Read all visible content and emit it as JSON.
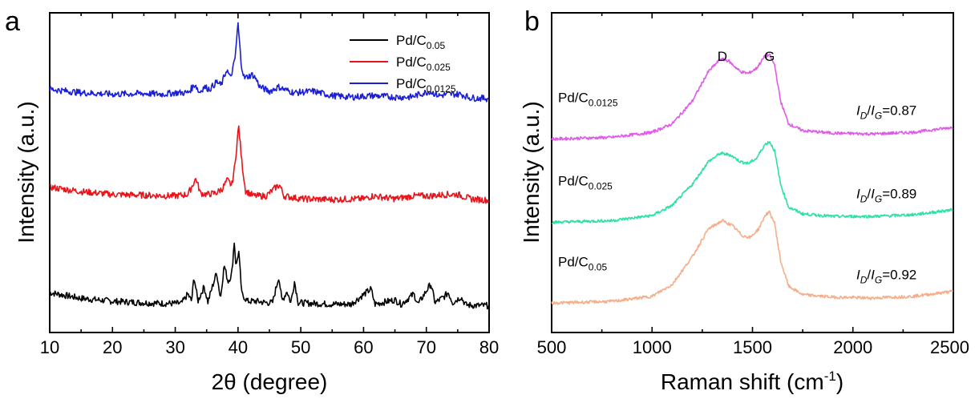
{
  "chart_data": [
    {
      "type": "line",
      "panel_label": "a",
      "xlabel": "2θ (degree)",
      "ylabel": "Intensity (a.u.)",
      "xlim": [
        10,
        80
      ],
      "xticks": [
        "10",
        "20",
        "30",
        "40",
        "50",
        "60",
        "70",
        "80"
      ],
      "y_tick_labels": false,
      "legend": {
        "placement": "top-right",
        "entries": [
          {
            "base": "Pd/C",
            "sub": "0.05",
            "color": "#000000"
          },
          {
            "base": "Pd/C",
            "sub": "0.025",
            "color": "#e8141b"
          },
          {
            "base": "Pd/C",
            "sub": "0.0125",
            "color": "#1a1fd6"
          }
        ]
      },
      "series": [
        {
          "name": "Pd/C0.05",
          "color": "#000000",
          "offset": 0.0,
          "points": [
            [
              10,
              0.2
            ],
            [
              15,
              0.12
            ],
            [
              20,
              0.08
            ],
            [
              25,
              0.06
            ],
            [
              28,
              0.05
            ],
            [
              31,
              0.05
            ],
            [
              32,
              0.18
            ],
            [
              32.6,
              0.08
            ],
            [
              33,
              0.42
            ],
            [
              33.6,
              0.08
            ],
            [
              34.6,
              0.28
            ],
            [
              35.2,
              0.07
            ],
            [
              36.6,
              0.48
            ],
            [
              37.2,
              0.12
            ],
            [
              37.8,
              0.58
            ],
            [
              38.4,
              0.35
            ],
            [
              39,
              0.45
            ],
            [
              39.4,
              0.9
            ],
            [
              39.7,
              0.55
            ],
            [
              40.1,
              0.78
            ],
            [
              40.6,
              0.18
            ],
            [
              41.5,
              0.08
            ],
            [
              43,
              0.08
            ],
            [
              44.5,
              0.06
            ],
            [
              45.5,
              0.06
            ],
            [
              46.5,
              0.42
            ],
            [
              47,
              0.08
            ],
            [
              47.8,
              0.22
            ],
            [
              48.4,
              0.06
            ],
            [
              49,
              0.35
            ],
            [
              49.6,
              0.06
            ],
            [
              52,
              0.05
            ],
            [
              55,
              0.04
            ],
            [
              58,
              0.04
            ],
            [
              61.2,
              0.25
            ],
            [
              61.8,
              0.04
            ],
            [
              65,
              0.1
            ],
            [
              66,
              0.04
            ],
            [
              68,
              0.18
            ],
            [
              68.7,
              0.04
            ],
            [
              70.7,
              0.32
            ],
            [
              71.4,
              0.06
            ],
            [
              72.8,
              0.14
            ],
            [
              73.5,
              0.2
            ],
            [
              74.2,
              0.06
            ],
            [
              75.5,
              0.14
            ],
            [
              76.3,
              0.03
            ],
            [
              78,
              0.02
            ],
            [
              80,
              0.02
            ]
          ]
        },
        {
          "name": "Pd/C0.025",
          "color": "#e8141b",
          "offset": 1.45,
          "points": [
            [
              10,
              0.2
            ],
            [
              15,
              0.14
            ],
            [
              20,
              0.1
            ],
            [
              25,
              0.09
            ],
            [
              30,
              0.08
            ],
            [
              32,
              0.1
            ],
            [
              33.3,
              0.32
            ],
            [
              34,
              0.12
            ],
            [
              35,
              0.1
            ],
            [
              36.5,
              0.12
            ],
            [
              37.5,
              0.18
            ],
            [
              38.3,
              0.3
            ],
            [
              39,
              0.22
            ],
            [
              39.5,
              0.5
            ],
            [
              40.1,
              1.05
            ],
            [
              40.6,
              0.55
            ],
            [
              41.2,
              0.15
            ],
            [
              42.5,
              0.08
            ],
            [
              44.5,
              0.08
            ],
            [
              46.3,
              0.22
            ],
            [
              46.7,
              0.22
            ],
            [
              47.3,
              0.08
            ],
            [
              50,
              0.04
            ],
            [
              55,
              0.03
            ],
            [
              60,
              0.04
            ],
            [
              61.5,
              0.08
            ],
            [
              65,
              0.04
            ],
            [
              68,
              0.08
            ],
            [
              70.5,
              0.08
            ],
            [
              73,
              0.1
            ],
            [
              75,
              0.1
            ],
            [
              77,
              0.04
            ],
            [
              80,
              0.02
            ]
          ]
        },
        {
          "name": "Pd/C0.0125",
          "color": "#1a1fd6",
          "offset": 2.85,
          "points": [
            [
              10,
              0.15
            ],
            [
              15,
              0.1
            ],
            [
              20,
              0.08
            ],
            [
              25,
              0.09
            ],
            [
              28,
              0.08
            ],
            [
              30,
              0.1
            ],
            [
              32,
              0.1
            ],
            [
              33.2,
              0.22
            ],
            [
              33.8,
              0.1
            ],
            [
              34.6,
              0.18
            ],
            [
              35.5,
              0.15
            ],
            [
              36.6,
              0.25
            ],
            [
              37.3,
              0.2
            ],
            [
              38.2,
              0.42
            ],
            [
              38.8,
              0.3
            ],
            [
              39.5,
              0.55
            ],
            [
              40,
              1.05
            ],
            [
              40.5,
              0.5
            ],
            [
              41,
              0.3
            ],
            [
              42.3,
              0.35
            ],
            [
              42.8,
              0.3
            ],
            [
              43.5,
              0.18
            ],
            [
              45,
              0.12
            ],
            [
              46.5,
              0.18
            ],
            [
              47.5,
              0.14
            ],
            [
              49,
              0.1
            ],
            [
              52,
              0.12
            ],
            [
              55,
              0.06
            ],
            [
              58,
              0.04
            ],
            [
              61.5,
              0.06
            ],
            [
              65,
              0.04
            ],
            [
              67.5,
              0.04
            ],
            [
              70.5,
              0.12
            ],
            [
              72,
              0.06
            ],
            [
              73.5,
              0.08
            ],
            [
              75.5,
              0.08
            ],
            [
              77,
              0.03
            ],
            [
              80,
              0.02
            ]
          ]
        }
      ]
    },
    {
      "type": "line",
      "panel_label": "b",
      "xlabel_main": "Raman shift (cm",
      "xlabel_sup": "-1",
      "xlabel_close": ")",
      "ylabel": "Intensity (a.u.)",
      "xlim": [
        500,
        2500
      ],
      "xticks": [
        "500",
        "1000",
        "1500",
        "2000",
        "2500"
      ],
      "y_tick_labels": false,
      "peak_labels": [
        {
          "text": "D",
          "x": 1350
        },
        {
          "text": "G",
          "x": 1585
        }
      ],
      "series": [
        {
          "base": "Pd/C",
          "sub": "0.0125",
          "ratio_text": "=0.87",
          "color": "#e05ae8",
          "offset": 1.95,
          "points": [
            [
              500,
              0.0
            ],
            [
              800,
              0.02
            ],
            [
              1000,
              0.08
            ],
            [
              1100,
              0.18
            ],
            [
              1200,
              0.45
            ],
            [
              1280,
              0.8
            ],
            [
              1340,
              0.95
            ],
            [
              1380,
              0.93
            ],
            [
              1440,
              0.8
            ],
            [
              1480,
              0.78
            ],
            [
              1520,
              0.84
            ],
            [
              1560,
              0.98
            ],
            [
              1585,
              1.0
            ],
            [
              1610,
              0.88
            ],
            [
              1640,
              0.45
            ],
            [
              1680,
              0.18
            ],
            [
              1750,
              0.1
            ],
            [
              1900,
              0.07
            ],
            [
              2100,
              0.06
            ],
            [
              2300,
              0.08
            ],
            [
              2500,
              0.14
            ]
          ]
        },
        {
          "base": "Pd/C",
          "sub": "0.025",
          "ratio_text": "=0.89",
          "color": "#2ee0a8",
          "offset": 0.96,
          "points": [
            [
              500,
              0.0
            ],
            [
              800,
              0.02
            ],
            [
              1000,
              0.08
            ],
            [
              1100,
              0.2
            ],
            [
              1200,
              0.45
            ],
            [
              1280,
              0.72
            ],
            [
              1340,
              0.82
            ],
            [
              1390,
              0.8
            ],
            [
              1440,
              0.72
            ],
            [
              1480,
              0.7
            ],
            [
              1520,
              0.76
            ],
            [
              1560,
              0.92
            ],
            [
              1585,
              0.96
            ],
            [
              1610,
              0.85
            ],
            [
              1640,
              0.45
            ],
            [
              1680,
              0.18
            ],
            [
              1750,
              0.1
            ],
            [
              1900,
              0.07
            ],
            [
              2100,
              0.07
            ],
            [
              2300,
              0.09
            ],
            [
              2500,
              0.15
            ]
          ]
        },
        {
          "base": "Pd/C",
          "sub": "0.05",
          "ratio_text": "=0.92",
          "color": "#f5ae8a",
          "offset": 0.0,
          "points": [
            [
              500,
              0.0
            ],
            [
              800,
              0.02
            ],
            [
              1000,
              0.08
            ],
            [
              1100,
              0.22
            ],
            [
              1200,
              0.55
            ],
            [
              1280,
              0.88
            ],
            [
              1350,
              0.98
            ],
            [
              1400,
              0.92
            ],
            [
              1450,
              0.8
            ],
            [
              1490,
              0.78
            ],
            [
              1530,
              0.88
            ],
            [
              1565,
              1.05
            ],
            [
              1585,
              1.08
            ],
            [
              1610,
              0.95
            ],
            [
              1640,
              0.5
            ],
            [
              1680,
              0.2
            ],
            [
              1750,
              0.1
            ],
            [
              1900,
              0.07
            ],
            [
              2100,
              0.06
            ],
            [
              2300,
              0.08
            ],
            [
              2500,
              0.14
            ]
          ]
        }
      ]
    }
  ]
}
